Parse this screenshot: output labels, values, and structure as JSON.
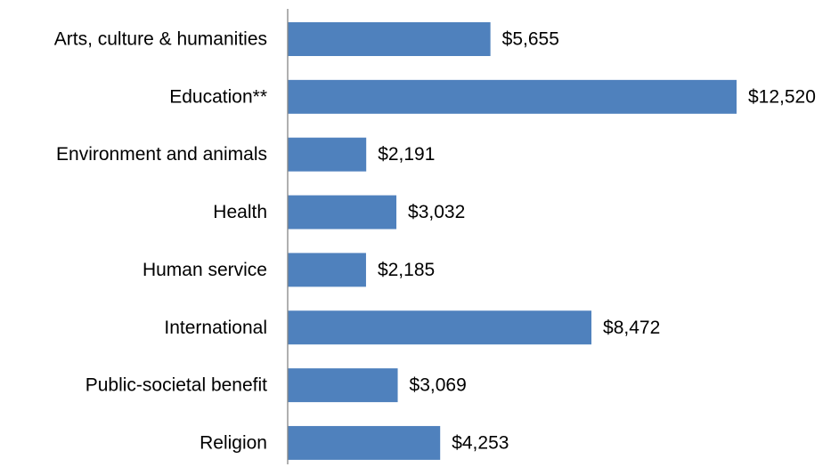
{
  "chart_data": {
    "type": "bar",
    "orientation": "horizontal",
    "categories": [
      "Arts, culture & humanities",
      "Education**",
      "Environment and animals",
      "Health",
      "Human service",
      "International",
      "Public-societal benefit",
      "Religion"
    ],
    "values": [
      5655,
      12520,
      2191,
      3032,
      2185,
      8472,
      3069,
      4253
    ],
    "value_labels": [
      "$5,655",
      "$12,520",
      "$2,191",
      "$3,032",
      "$2,185",
      "$8,472",
      "$3,069",
      "$4,253"
    ],
    "title": "",
    "xlabel": "",
    "ylabel": "",
    "xlim": [
      0,
      12520
    ],
    "grid": false,
    "legend": "none",
    "colors": {
      "bar": "#4f81bd",
      "axis": "#868686",
      "text": "#000000"
    }
  }
}
